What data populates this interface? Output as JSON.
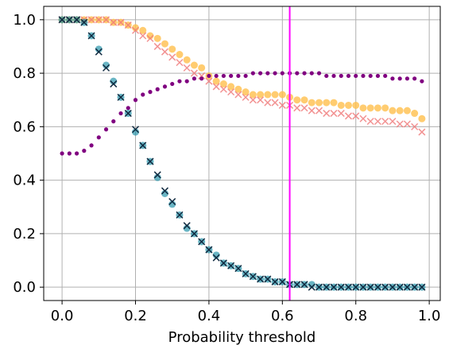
{
  "chart_data": {
    "type": "scatter",
    "title": "",
    "xlabel": "Probability threshold",
    "ylabel": "",
    "xlim": [
      -0.05,
      1.03
    ],
    "ylim": [
      -0.05,
      1.05
    ],
    "xticks": [
      0.0,
      0.2,
      0.4,
      0.6,
      0.8,
      1.0
    ],
    "xtick_labels": [
      "0.0",
      "0.2",
      "0.4",
      "0.6",
      "0.8",
      "1.0"
    ],
    "yticks": [
      0.0,
      0.2,
      0.4,
      0.6,
      0.8,
      1.0
    ],
    "ytick_labels": [
      "0.0",
      "0.2",
      "0.4",
      "0.6",
      "0.8",
      "1.0"
    ],
    "grid": true,
    "legend": "none",
    "threshold_line": {
      "x": 0.62,
      "color": "#ff00ff"
    },
    "x": [
      0.0,
      0.02,
      0.04,
      0.06,
      0.08,
      0.1,
      0.12,
      0.14,
      0.16,
      0.18,
      0.2,
      0.22,
      0.24,
      0.26,
      0.28,
      0.3,
      0.32,
      0.34,
      0.36,
      0.38,
      0.4,
      0.42,
      0.44,
      0.46,
      0.48,
      0.5,
      0.52,
      0.54,
      0.56,
      0.58,
      0.6,
      0.62,
      0.64,
      0.66,
      0.68,
      0.7,
      0.72,
      0.74,
      0.76,
      0.78,
      0.8,
      0.82,
      0.84,
      0.86,
      0.88,
      0.9,
      0.92,
      0.94,
      0.96,
      0.98
    ],
    "series": [
      {
        "marker": "circle",
        "color": "#ffc04d",
        "opacity": 0.8,
        "values": [
          1.0,
          1.0,
          1.0,
          1.0,
          1.0,
          1.0,
          1.0,
          0.99,
          0.99,
          0.98,
          0.97,
          0.96,
          0.94,
          0.93,
          0.91,
          0.89,
          0.87,
          0.85,
          0.83,
          0.82,
          0.79,
          0.77,
          0.76,
          0.75,
          0.74,
          0.73,
          0.72,
          0.72,
          0.72,
          0.72,
          0.72,
          0.71,
          0.7,
          0.7,
          0.69,
          0.69,
          0.69,
          0.69,
          0.68,
          0.68,
          0.68,
          0.67,
          0.67,
          0.67,
          0.67,
          0.66,
          0.66,
          0.66,
          0.65,
          0.63
        ]
      },
      {
        "marker": "x",
        "color": "#f07878",
        "opacity": 0.8,
        "values": [
          1.0,
          1.0,
          1.0,
          1.0,
          1.0,
          1.0,
          1.0,
          0.99,
          0.99,
          0.98,
          0.96,
          0.94,
          0.93,
          0.9,
          0.88,
          0.86,
          0.84,
          0.82,
          0.8,
          0.79,
          0.77,
          0.75,
          0.74,
          0.73,
          0.72,
          0.71,
          0.7,
          0.7,
          0.69,
          0.69,
          0.68,
          0.68,
          0.67,
          0.67,
          0.66,
          0.66,
          0.65,
          0.65,
          0.65,
          0.64,
          0.64,
          0.63,
          0.62,
          0.62,
          0.62,
          0.62,
          0.61,
          0.61,
          0.6,
          0.58
        ]
      },
      {
        "marker": "dot",
        "color": "#800080",
        "opacity": 1,
        "values": [
          0.5,
          0.5,
          0.5,
          0.51,
          0.53,
          0.56,
          0.59,
          0.62,
          0.65,
          0.67,
          0.7,
          0.72,
          0.73,
          0.74,
          0.75,
          0.76,
          0.77,
          0.77,
          0.78,
          0.78,
          0.79,
          0.79,
          0.79,
          0.79,
          0.79,
          0.79,
          0.8,
          0.8,
          0.8,
          0.8,
          0.8,
          0.8,
          0.8,
          0.8,
          0.8,
          0.8,
          0.79,
          0.79,
          0.79,
          0.79,
          0.79,
          0.79,
          0.79,
          0.79,
          0.79,
          0.78,
          0.78,
          0.78,
          0.78,
          0.77
        ]
      },
      {
        "marker": "circle",
        "color": "#1a8fa6",
        "opacity": 0.65,
        "values": [
          1.0,
          1.0,
          1.0,
          0.99,
          0.94,
          0.89,
          0.83,
          0.77,
          0.71,
          0.65,
          0.58,
          0.53,
          0.47,
          0.41,
          0.35,
          0.31,
          0.27,
          0.22,
          0.2,
          0.17,
          0.14,
          0.12,
          0.09,
          0.08,
          0.07,
          0.05,
          0.04,
          0.03,
          0.03,
          0.02,
          0.02,
          0.01,
          0.01,
          0.01,
          0.01,
          0.0,
          0.0,
          0.0,
          0.0,
          0.0,
          0.0,
          0.0,
          0.0,
          0.0,
          0.0,
          0.0,
          0.0,
          0.0,
          0.0,
          0.0
        ]
      },
      {
        "marker": "x",
        "color": "#102a40",
        "opacity": 1,
        "values": [
          1.0,
          1.0,
          1.0,
          0.99,
          0.94,
          0.88,
          0.82,
          0.76,
          0.71,
          0.65,
          0.59,
          0.53,
          0.47,
          0.42,
          0.36,
          0.32,
          0.27,
          0.23,
          0.2,
          0.17,
          0.14,
          0.11,
          0.09,
          0.08,
          0.07,
          0.05,
          0.04,
          0.03,
          0.03,
          0.02,
          0.02,
          0.01,
          0.01,
          0.01,
          0.0,
          0.0,
          0.0,
          0.0,
          0.0,
          0.0,
          0.0,
          0.0,
          0.0,
          0.0,
          0.0,
          0.0,
          0.0,
          0.0,
          0.0,
          0.0
        ]
      }
    ]
  }
}
